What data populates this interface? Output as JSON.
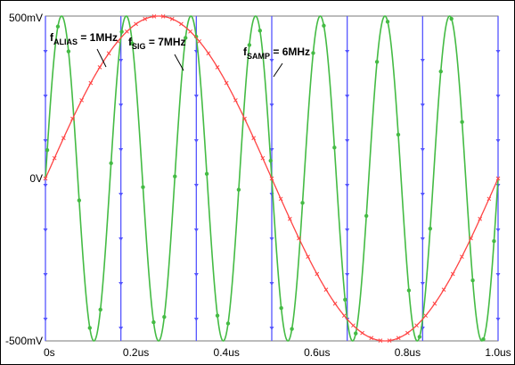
{
  "chart_data": {
    "type": "line",
    "xlabel": "",
    "ylabel": "",
    "xlim": [
      0,
      1.0
    ],
    "ylim": [
      -0.5,
      0.5
    ],
    "x_ticks": [
      {
        "value": 0,
        "label": "0s"
      },
      {
        "value": 0.2,
        "label": "0.2us"
      },
      {
        "value": 0.4,
        "label": "0.4us"
      },
      {
        "value": 0.6,
        "label": "0.6us"
      },
      {
        "value": 0.8,
        "label": "0.8us"
      },
      {
        "value": 1.0,
        "label": "1.0us"
      }
    ],
    "y_ticks": [
      {
        "value": 0.5,
        "label": "500mV"
      },
      {
        "value": 0,
        "label": "0V"
      },
      {
        "value": -0.5,
        "label": "-500mV"
      }
    ],
    "series": [
      {
        "frequency_mhz": 1,
        "amplitude_v": 0.5,
        "color": "#ff4444",
        "marker": "x"
      },
      {
        "frequency_mhz": 7,
        "amplitude_v": 0.5,
        "color": "#44bb44",
        "marker": "dot"
      },
      {
        "frequency_mhz": 6,
        "kind": "sample-pulses",
        "color": "#5555ff",
        "marker": "triangle"
      }
    ],
    "annotations": [
      {
        "main": "f",
        "sub": "ALIAS",
        "rest": " = 1MHz",
        "points_to_series": 0
      },
      {
        "main": "f",
        "sub": "SIG",
        "rest": " = 7MHz",
        "points_to_series": 1
      },
      {
        "main": "f",
        "sub": "SAMP",
        "rest": " = 6MHz",
        "points_to_series": 2
      }
    ],
    "grid": false,
    "legend": "none"
  }
}
